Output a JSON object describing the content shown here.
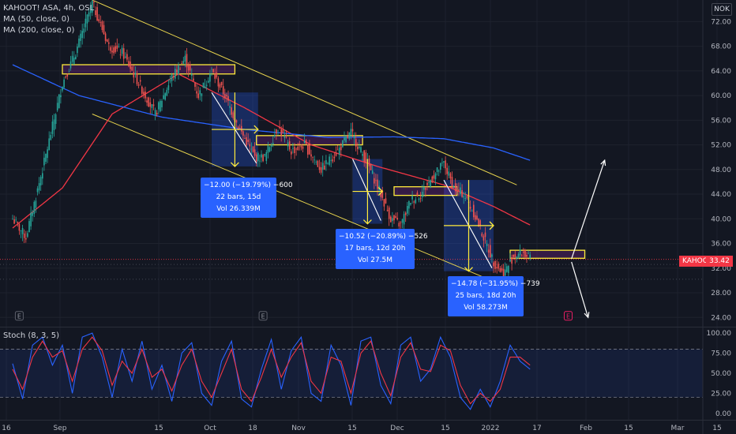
{
  "header": {
    "symbol_line": "KAHOOT! ASA, 4h, OSL",
    "ma50_label": "MA (50, close, 0)",
    "ma200_label": "MA (200, close, 0)",
    "currency": "NOK"
  },
  "price_tag": {
    "symbol": "KAHOOT",
    "value": "33.42"
  },
  "stoch_label": "Stoch (8, 3, 5)",
  "colors": {
    "background": "#131722",
    "grid": "#1e222d",
    "axis_text": "#b2b5be",
    "up": "#26a69a",
    "down": "#ef5350",
    "ma50": "#f23645",
    "ma200": "#2962ff",
    "channel": "#e8d44d",
    "zone": "#ffeb3b",
    "measure": "#2962ff",
    "stoch_k": "#2962ff",
    "stoch_d": "#f23645"
  },
  "measures": [
    {
      "l1": "−12.00 (−19.79%) −600",
      "l2": "22 bars, 15d",
      "l3": "Vol 26.339M"
    },
    {
      "l1": "−10.52 (−20.89%) −526",
      "l2": "17 bars, 12d 20h",
      "l3": "Vol 27.5M"
    },
    {
      "l1": "−14.78 (−31.95%) −739",
      "l2": "25 bars, 18d 20h",
      "l3": "Vol 58.273M"
    }
  ],
  "events": {
    "earnings_glyph": "E"
  },
  "chart_data": [
    {
      "type": "candlestick",
      "title": "KAHOOT! ASA, 4h, OSL",
      "x_ticks": [
        "16",
        "Sep",
        "15",
        "Oct",
        "18",
        "Nov",
        "15",
        "Dec",
        "15",
        "2022",
        "17",
        "Feb",
        "15",
        "Mar",
        "15"
      ],
      "y_ticks": [
        "72.00",
        "68.00",
        "64.00",
        "60.00",
        "56.00",
        "52.00",
        "48.00",
        "44.00",
        "40.00",
        "36.00",
        "32.00",
        "28.00",
        "24.00"
      ],
      "ylim": [
        22.5,
        75.5
      ],
      "last_price": 33.42,
      "close_anchors": [
        [
          0,
          40
        ],
        [
          8,
          37
        ],
        [
          18,
          48
        ],
        [
          30,
          62
        ],
        [
          38,
          67
        ],
        [
          48,
          75
        ],
        [
          58,
          68
        ],
        [
          66,
          67
        ],
        [
          76,
          62
        ],
        [
          86,
          57
        ],
        [
          96,
          63
        ],
        [
          104,
          66
        ],
        [
          112,
          60
        ],
        [
          120,
          64
        ],
        [
          128,
          60
        ],
        [
          136,
          55
        ],
        [
          146,
          50
        ],
        [
          152,
          50
        ],
        [
          160,
          55
        ],
        [
          168,
          51
        ],
        [
          176,
          52
        ],
        [
          186,
          48
        ],
        [
          196,
          51
        ],
        [
          204,
          54
        ],
        [
          214,
          49
        ],
        [
          222,
          44
        ],
        [
          228,
          40
        ],
        [
          234,
          39
        ],
        [
          240,
          43
        ],
        [
          246,
          44
        ],
        [
          254,
          47
        ],
        [
          260,
          49
        ],
        [
          266,
          45
        ],
        [
          272,
          44
        ],
        [
          278,
          41
        ],
        [
          284,
          37
        ],
        [
          290,
          33
        ],
        [
          296,
          31
        ],
        [
          302,
          34
        ],
        [
          308,
          34.5
        ],
        [
          312,
          33.4
        ]
      ],
      "series": [
        {
          "name": "MA (50, close, 0)",
          "anchors": [
            [
              0,
              38.5
            ],
            [
              30,
              45
            ],
            [
              60,
              57
            ],
            [
              100,
              63.5
            ],
            [
              140,
              58
            ],
            [
              180,
              52
            ],
            [
              220,
              48.5
            ],
            [
              260,
              45.5
            ],
            [
              290,
              42
            ],
            [
              312,
              39
            ]
          ]
        },
        {
          "name": "MA (200, close, 0)",
          "anchors": [
            [
              0,
              65
            ],
            [
              40,
              60
            ],
            [
              90,
              56.5
            ],
            [
              140,
              54.5
            ],
            [
              190,
              53.2
            ],
            [
              230,
              53.3
            ],
            [
              260,
              53
            ],
            [
              290,
              51.5
            ],
            [
              312,
              49.5
            ]
          ]
        }
      ],
      "trend_lines": [
        {
          "from": [
            48,
            75.5
          ],
          "to": [
            304,
            45.5
          ]
        },
        {
          "from": [
            48,
            57
          ],
          "to": [
            286,
            30.3
          ]
        }
      ],
      "zones": [
        {
          "x": [
            30,
            134
          ],
          "y": [
            63.5,
            65
          ]
        },
        {
          "x": [
            147,
            211
          ],
          "y": [
            52,
            53.5
          ]
        },
        {
          "x": [
            230,
            268
          ],
          "y": [
            43.8,
            45.2
          ]
        },
        {
          "x": [
            300,
            345
          ],
          "y": [
            33.6,
            34.9
          ]
        }
      ],
      "drops": [
        {
          "x": [
            120,
            148
          ],
          "y": [
            60.5,
            48.5
          ]
        },
        {
          "x": [
            205,
            223
          ],
          "y": [
            49.7,
            39.2
          ]
        },
        {
          "x": [
            260,
            290
          ],
          "y": [
            46.3,
            31.5
          ]
        }
      ],
      "projections": [
        {
          "from": [
            337,
            33.5
          ],
          "to": [
            357,
            49.5
          ]
        },
        {
          "from": [
            337,
            33
          ],
          "to": [
            347,
            24
          ]
        }
      ],
      "events_at": [
        [
          4,
          24.2
        ],
        [
          151,
          24.2
        ],
        [
          335,
          24.2
        ]
      ]
    },
    {
      "type": "line",
      "title": "Stoch (8, 3, 5)",
      "y_ticks": [
        "100.00",
        "75.00",
        "50.00",
        "25.00",
        "0.00"
      ],
      "ylim": [
        -8,
        106
      ],
      "bands": [
        20,
        80
      ],
      "series": [
        {
          "name": "K",
          "anchors": [
            [
              0,
              62
            ],
            [
              6,
              18
            ],
            [
              12,
              85
            ],
            [
              18,
              95
            ],
            [
              24,
              60
            ],
            [
              30,
              85
            ],
            [
              36,
              25
            ],
            [
              42,
              95
            ],
            [
              48,
              100
            ],
            [
              54,
              70
            ],
            [
              60,
              20
            ],
            [
              66,
              80
            ],
            [
              72,
              40
            ],
            [
              78,
              90
            ],
            [
              84,
              30
            ],
            [
              90,
              60
            ],
            [
              96,
              15
            ],
            [
              102,
              75
            ],
            [
              108,
              88
            ],
            [
              114,
              25
            ],
            [
              120,
              10
            ],
            [
              126,
              65
            ],
            [
              132,
              90
            ],
            [
              138,
              18
            ],
            [
              144,
              8
            ],
            [
              150,
              55
            ],
            [
              156,
              92
            ],
            [
              162,
              30
            ],
            [
              168,
              78
            ],
            [
              174,
              95
            ],
            [
              180,
              25
            ],
            [
              186,
              15
            ],
            [
              192,
              85
            ],
            [
              198,
              60
            ],
            [
              204,
              10
            ],
            [
              210,
              90
            ],
            [
              216,
              95
            ],
            [
              222,
              35
            ],
            [
              228,
              12
            ],
            [
              234,
              85
            ],
            [
              240,
              95
            ],
            [
              246,
              40
            ],
            [
              252,
              55
            ],
            [
              258,
              95
            ],
            [
              264,
              70
            ],
            [
              270,
              20
            ],
            [
              276,
              5
            ],
            [
              282,
              30
            ],
            [
              288,
              8
            ],
            [
              294,
              40
            ],
            [
              300,
              85
            ],
            [
              306,
              65
            ],
            [
              312,
              55
            ]
          ]
        },
        {
          "name": "D",
          "anchors": [
            [
              0,
              55
            ],
            [
              6,
              30
            ],
            [
              12,
              70
            ],
            [
              18,
              90
            ],
            [
              24,
              70
            ],
            [
              30,
              78
            ],
            [
              36,
              40
            ],
            [
              42,
              80
            ],
            [
              48,
              95
            ],
            [
              54,
              78
            ],
            [
              60,
              35
            ],
            [
              66,
              65
            ],
            [
              72,
              50
            ],
            [
              78,
              80
            ],
            [
              84,
              45
            ],
            [
              90,
              55
            ],
            [
              96,
              28
            ],
            [
              102,
              60
            ],
            [
              108,
              80
            ],
            [
              114,
              40
            ],
            [
              120,
              20
            ],
            [
              126,
              50
            ],
            [
              132,
              80
            ],
            [
              138,
              30
            ],
            [
              144,
              15
            ],
            [
              150,
              45
            ],
            [
              156,
              80
            ],
            [
              162,
              45
            ],
            [
              168,
              70
            ],
            [
              174,
              88
            ],
            [
              180,
              40
            ],
            [
              186,
              25
            ],
            [
              192,
              70
            ],
            [
              198,
              65
            ],
            [
              204,
              25
            ],
            [
              210,
              75
            ],
            [
              216,
              90
            ],
            [
              222,
              50
            ],
            [
              228,
              22
            ],
            [
              234,
              70
            ],
            [
              240,
              88
            ],
            [
              246,
              55
            ],
            [
              252,
              52
            ],
            [
              258,
              85
            ],
            [
              264,
              78
            ],
            [
              270,
              35
            ],
            [
              276,
              12
            ],
            [
              282,
              25
            ],
            [
              288,
              15
            ],
            [
              294,
              30
            ],
            [
              300,
              70
            ],
            [
              306,
              70
            ],
            [
              312,
              60
            ]
          ]
        }
      ]
    }
  ]
}
